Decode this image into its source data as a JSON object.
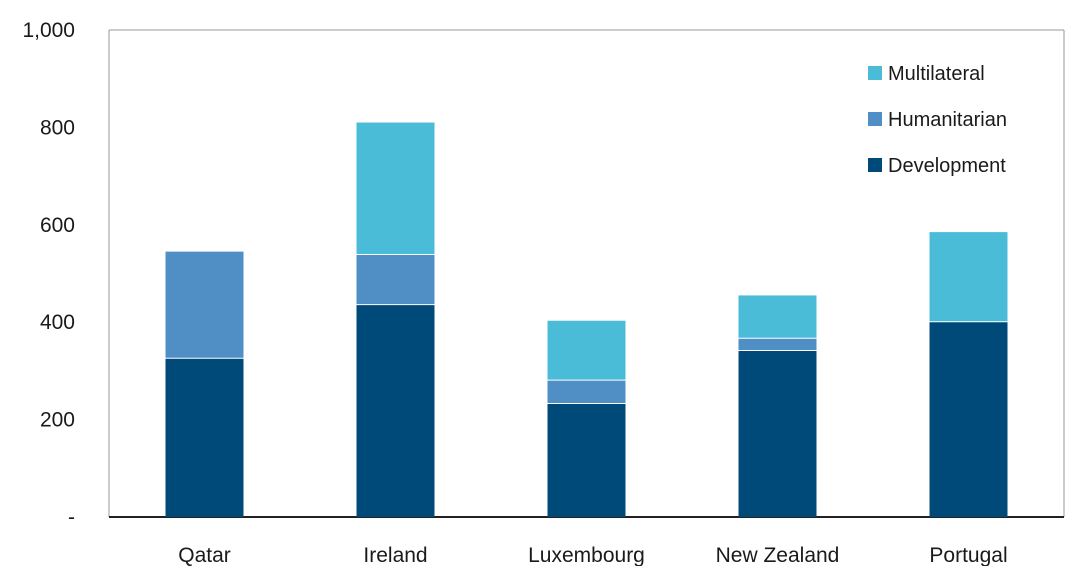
{
  "chart_data": {
    "type": "bar",
    "stacked": true,
    "categories": [
      "Qatar",
      "Ireland",
      "Luxembourg",
      "New Zealand",
      "Portugal"
    ],
    "series": [
      {
        "name": "Development",
        "color": "#004a7a",
        "values": [
          326,
          436,
          233,
          342,
          401
        ]
      },
      {
        "name": "Humanitarian",
        "color": "#4f8fc6",
        "values": [
          220,
          103,
          48,
          25,
          0
        ]
      },
      {
        "name": "Multilateral",
        "color": "#4bbcd8",
        "values": [
          0,
          271,
          122,
          88,
          184
        ]
      }
    ],
    "legend_order": [
      "Multilateral",
      "Humanitarian",
      "Development"
    ],
    "legend_position": "top-right",
    "ylim": [
      0,
      1000
    ],
    "yticks": [
      0,
      200,
      400,
      600,
      800,
      1000
    ],
    "ytick_labels": [
      "-",
      "200",
      "400",
      "600",
      "800",
      "1,000"
    ],
    "grid": false,
    "title": "",
    "xlabel": "",
    "ylabel": ""
  }
}
